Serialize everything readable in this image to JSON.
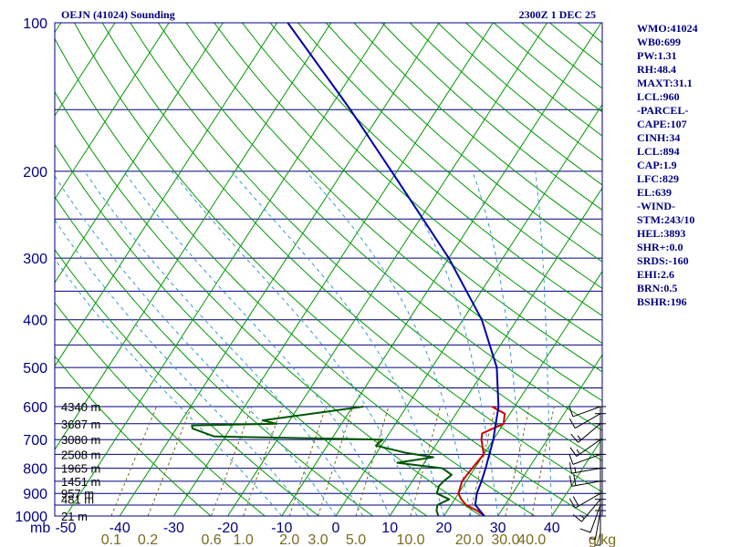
{
  "header": {
    "station": "OEJN (41024) Sounding",
    "time": "2300Z  1 DEC 25"
  },
  "stats": [
    "WMO:41024",
    "WB0:699",
    "PW:1.31",
    "RH:48.4",
    "MAXT:31.1",
    "LCL:960",
    "-PARCEL-",
    "CAPE:107",
    "CINH:34",
    "LCL:894",
    "CAP:1.9",
    "LFC:829",
    "EL:639",
    "-WIND-",
    "STM:243/10",
    "HEL:3893",
    "SHR+:0.0",
    "SRDS:-160",
    "EHI:2.6",
    "BRN:0.5",
    "BSHR:196"
  ],
  "axes": {
    "pressure_unit": "mb",
    "mixing_ratio_unit": "g/kg",
    "pressure_ticks": [
      100,
      200,
      300,
      400,
      500,
      600,
      700,
      800,
      900,
      1000
    ],
    "temperature_ticks": [
      -50,
      -40,
      -30,
      -20,
      -10,
      0,
      10,
      20,
      30,
      40
    ],
    "mixing_ratio_ticks": [
      "0.1",
      "0.2",
      "0.6",
      "1.0",
      "2.0",
      "3.0",
      "5.0",
      "10.0",
      "20.0",
      "30.0",
      "40.0"
    ]
  },
  "chart_data": {
    "type": "line",
    "title": "OEJN (41024) Sounding",
    "subtitle": "2300Z  1 DEC 25",
    "xlabel": "",
    "ylabel": "mb",
    "y_scale": "log",
    "ylim": [
      1000,
      100
    ],
    "xlim": [
      -50,
      50
    ],
    "series": [
      {
        "color": "#cc0000",
        "points": [
          [
            1000,
            27.5
          ],
          [
            975,
            25.5
          ],
          [
            950,
            22.8
          ],
          [
            925,
            21.2
          ],
          [
            900,
            20.0
          ],
          [
            850,
            19.2
          ],
          [
            800,
            19.5
          ],
          [
            750,
            20.0
          ],
          [
            700,
            17.8
          ],
          [
            680,
            17.2
          ],
          [
            650,
            20.0
          ],
          [
            620,
            19.0
          ],
          [
            600,
            15.8
          ]
        ]
      },
      {
        "color": "#005500",
        "points": [
          [
            1000,
            19.0
          ],
          [
            975,
            18.0
          ],
          [
            950,
            17.5
          ],
          [
            925,
            19.0
          ],
          [
            900,
            16.0
          ],
          [
            870,
            15.5
          ],
          [
            850,
            15.8
          ],
          [
            825,
            16.5
          ],
          [
            800,
            14.0
          ],
          [
            790,
            9.5
          ],
          [
            780,
            5.0
          ],
          [
            760,
            11.0
          ],
          [
            745,
            5.5
          ],
          [
            720,
            -1.0
          ],
          [
            700,
            -0.5
          ],
          [
            690,
            -32.0
          ],
          [
            665,
            -37.0
          ],
          [
            655,
            -37.5
          ],
          [
            650,
            -22.0
          ],
          [
            640,
            -25.0
          ],
          [
            600,
            -8.0
          ]
        ]
      },
      {
        "color": "#0000aa",
        "points": [
          [
            1000,
            27.5
          ],
          [
            950,
            24.5
          ],
          [
            900,
            23.4
          ],
          [
            850,
            22.8
          ],
          [
            800,
            22.0
          ],
          [
            700,
            20.0
          ],
          [
            600,
            17.0
          ],
          [
            500,
            12.0
          ],
          [
            400,
            3.5
          ],
          [
            300,
            -10.0
          ],
          [
            200,
            -31.0
          ],
          [
            150,
            -46.0
          ],
          [
            100,
            -68.0
          ]
        ]
      }
    ],
    "height_labels": [
      {
        "p": 1000,
        "text": "21 m"
      },
      {
        "p": 925,
        "text": "481 m"
      },
      {
        "p": 900,
        "text": "957 m"
      },
      {
        "p": 850,
        "text": "1451 m"
      },
      {
        "p": 800,
        "text": "1965 m"
      },
      {
        "p": 750,
        "text": "2508 m"
      },
      {
        "p": 700,
        "text": "3080 m"
      },
      {
        "p": 650,
        "text": "3687 m"
      },
      {
        "p": 600,
        "text": "4340 m"
      }
    ],
    "wind_barbs": [
      {
        "p": 1000,
        "dir": 180,
        "spd": 5
      },
      {
        "p": 975,
        "dir": 190,
        "spd": 5
      },
      {
        "p": 950,
        "dir": 200,
        "spd": 10
      },
      {
        "p": 925,
        "dir": 220,
        "spd": 15
      },
      {
        "p": 900,
        "dir": 240,
        "spd": 20
      },
      {
        "p": 850,
        "dir": 260,
        "spd": 20
      },
      {
        "p": 800,
        "dir": 260,
        "spd": 15
      },
      {
        "p": 750,
        "dir": 250,
        "spd": 10
      },
      {
        "p": 700,
        "dir": 235,
        "spd": 15
      },
      {
        "p": 650,
        "dir": 230,
        "spd": 15
      },
      {
        "p": 620,
        "dir": 240,
        "spd": 10
      },
      {
        "p": 600,
        "dir": 250,
        "spd": 10
      }
    ],
    "grid": true
  },
  "colors": {
    "isobar": "#000080",
    "isotherm": "#009900",
    "moist_adiabat": "#3399cc",
    "mixing_ratio": "#7a6a1e",
    "temperature": "#cc0000",
    "dewpoint": "#005500",
    "parcel": "#0000aa"
  }
}
